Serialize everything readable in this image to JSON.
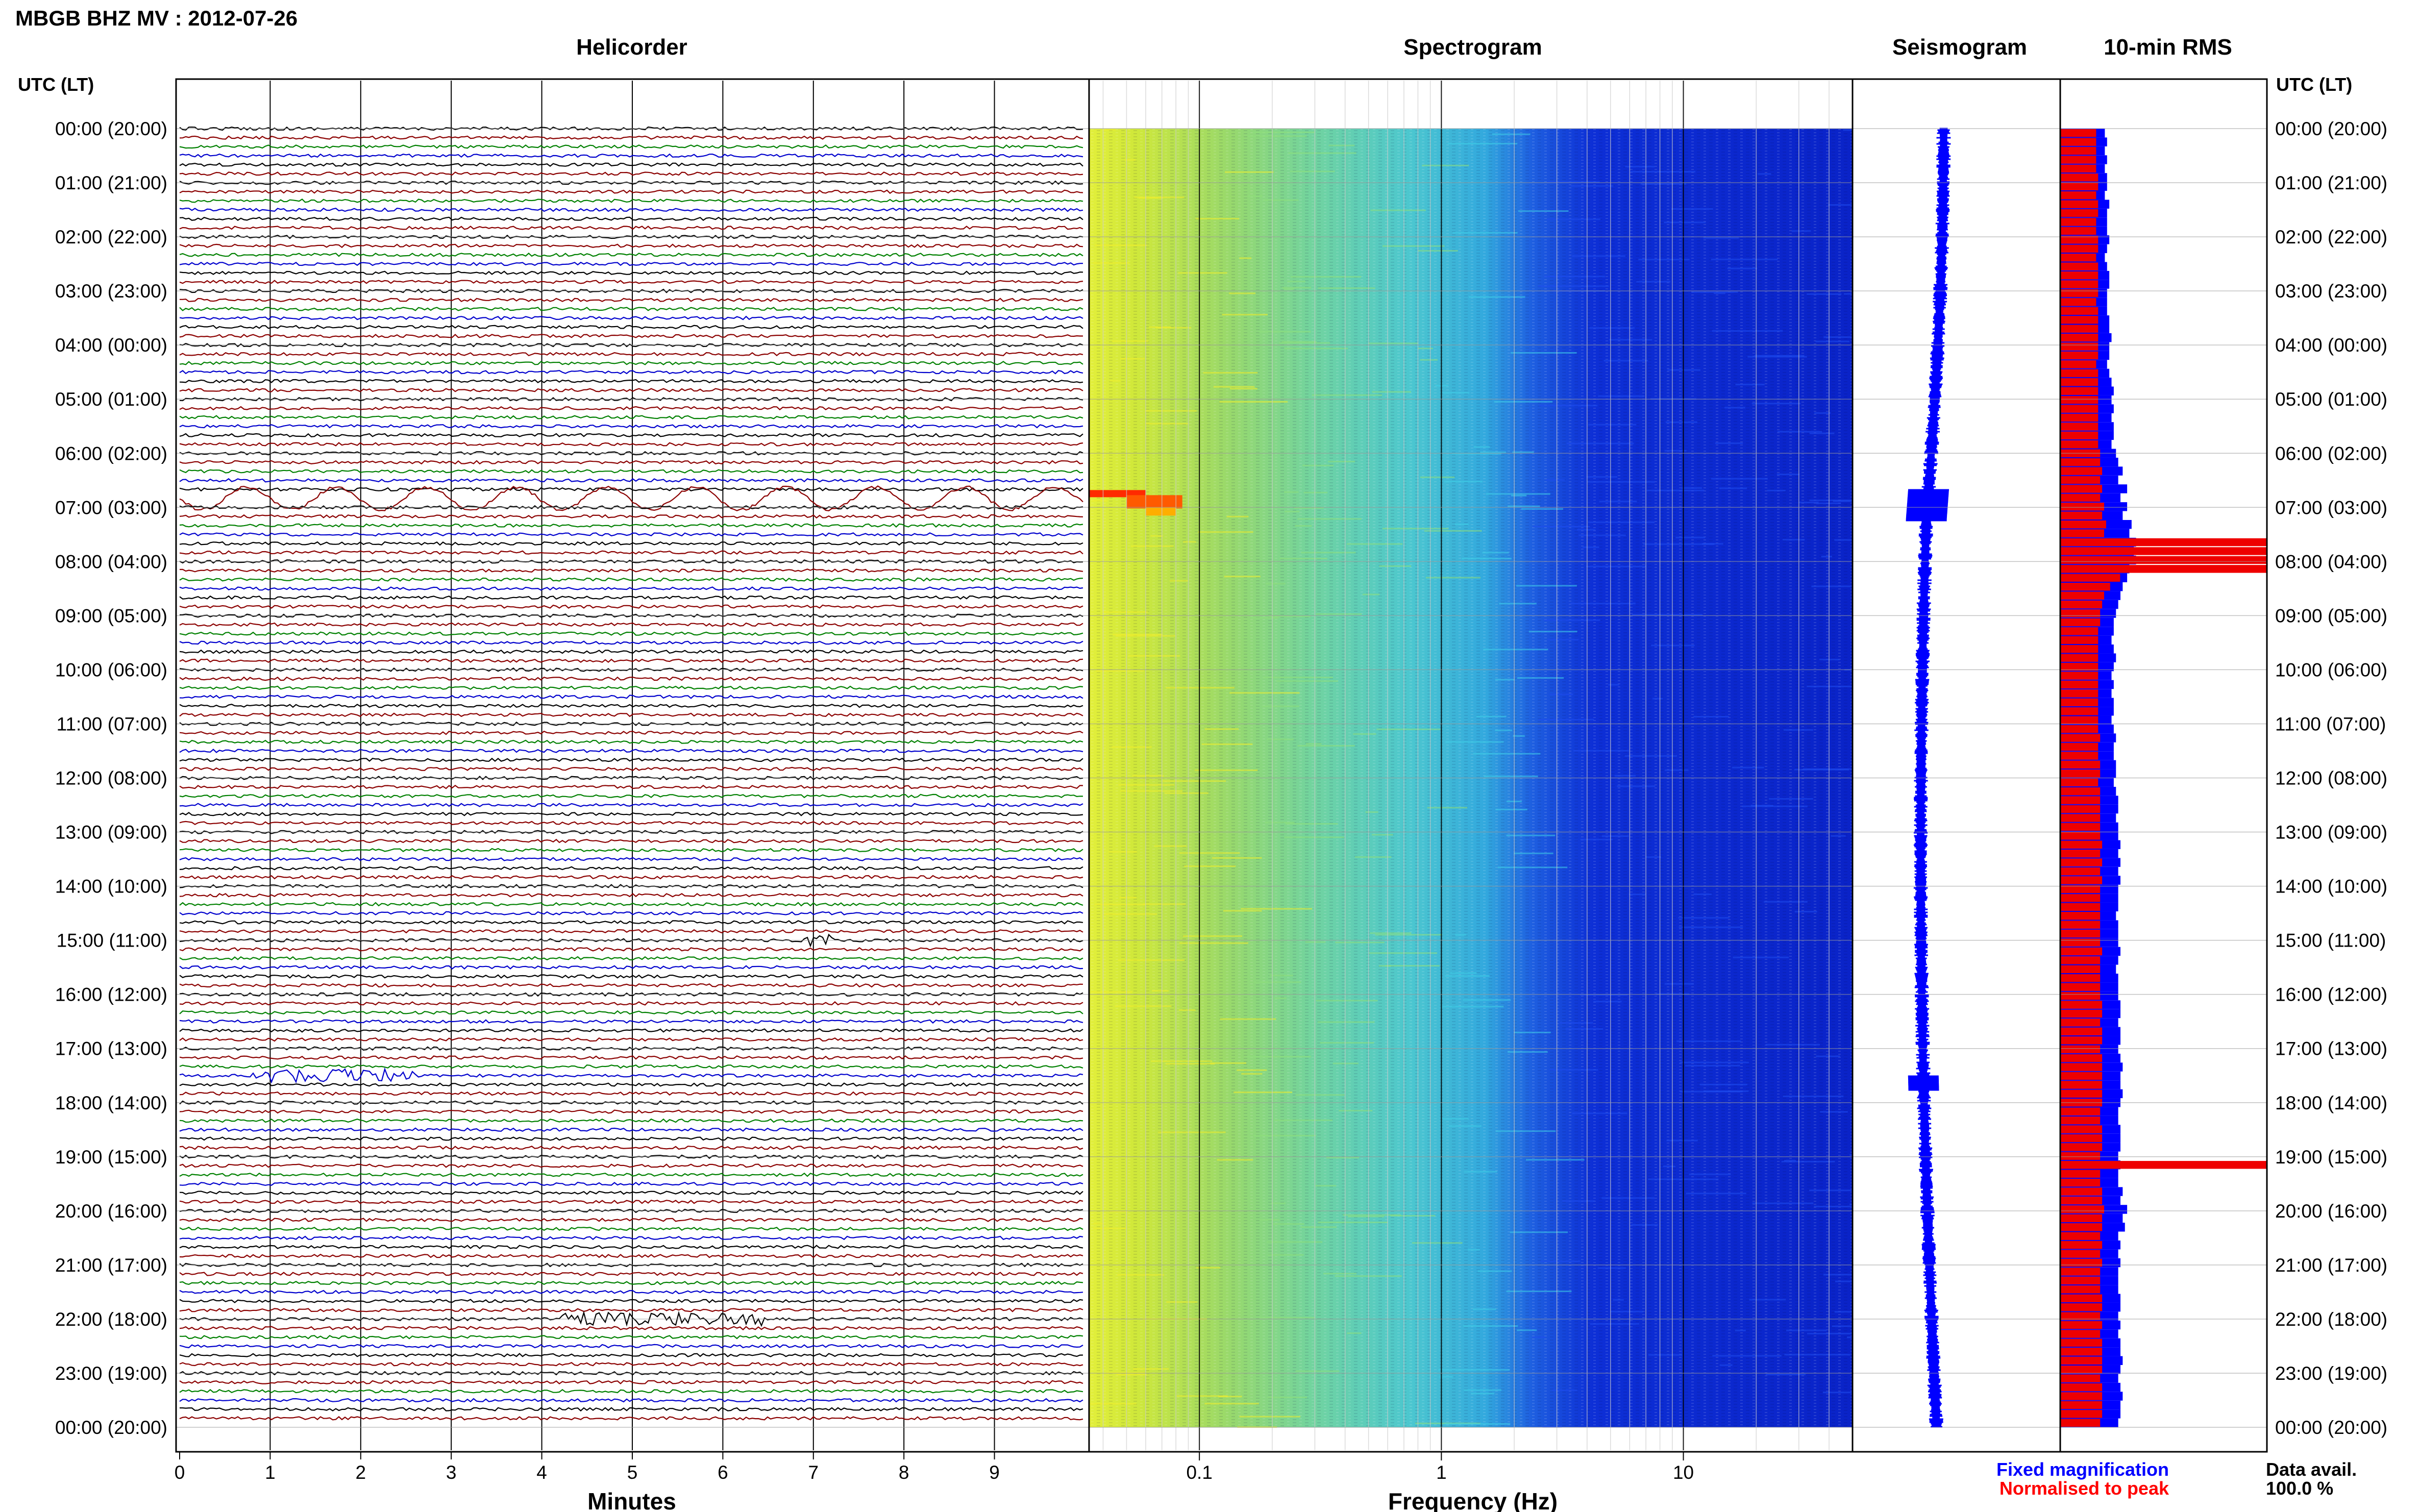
{
  "title": "MBGB BHZ MV : 2012-07-26",
  "panels": {
    "helicorder": "Helicorder",
    "spectrogram": "Spectrogram",
    "seismogram": "Seismogram",
    "rms": "10-min RMS"
  },
  "axis_header_left": "UTC (LT)",
  "axis_header_right": "UTC (LT)",
  "time_labels": [
    "00:00 (20:00)",
    "01:00 (21:00)",
    "02:00 (22:00)",
    "03:00 (23:00)",
    "04:00 (00:00)",
    "05:00 (01:00)",
    "06:00 (02:00)",
    "07:00 (03:00)",
    "08:00 (04:00)",
    "09:00 (05:00)",
    "10:00 (06:00)",
    "11:00 (07:00)",
    "12:00 (08:00)",
    "13:00 (09:00)",
    "14:00 (10:00)",
    "15:00 (11:00)",
    "16:00 (12:00)",
    "17:00 (13:00)",
    "18:00 (14:00)",
    "19:00 (15:00)",
    "20:00 (16:00)",
    "21:00 (17:00)",
    "22:00 (18:00)",
    "23:00 (19:00)",
    "00:00 (20:00)"
  ],
  "helicorder_xlabel": "Minutes",
  "helicorder_ticks": [
    "0",
    "1",
    "2",
    "3",
    "4",
    "5",
    "6",
    "7",
    "8",
    "9"
  ],
  "spectrogram_xlabel": "Frequency (Hz)",
  "spectrogram_ticks": [
    "0.1",
    "1",
    "10"
  ],
  "legend": {
    "fixed": "Fixed magnification",
    "normalised": "Normalised to peak"
  },
  "data_avail_label": "Data avail.",
  "data_avail_value": "100.0 %",
  "colors": {
    "trace_cycle": [
      "#000000",
      "#8b0000",
      "#008000",
      "#0000cd"
    ],
    "rms_fixed": "#0000ff",
    "rms_normalised": "#ee0000",
    "seismogram": "#0000ff",
    "legend_fixed": "#0000ff",
    "legend_normalised": "#ff0000"
  },
  "chart_data": [
    {
      "type": "line",
      "name": "helicorder",
      "xlabel": "Minutes",
      "xlim": [
        0,
        10
      ],
      "rows_per_hour": 6,
      "hours": 24,
      "events": [
        {
          "hour": 6,
          "row": 5,
          "minute_start": 0,
          "minute_end": 10,
          "type": "teleseism"
        },
        {
          "hour": 15,
          "row": 0,
          "minute_start": 6.9,
          "minute_end": 7.3,
          "type": "local"
        },
        {
          "hour": 17,
          "row": 3,
          "minute_start": 0.8,
          "minute_end": 2.6,
          "type": "local"
        },
        {
          "hour": 22,
          "row": 0,
          "minute_start": 4.2,
          "minute_end": 6.5,
          "type": "local"
        }
      ]
    },
    {
      "type": "heatmap",
      "name": "spectrogram",
      "xlabel": "Frequency (Hz)",
      "xscale": "log",
      "xlim": [
        0.035,
        50
      ],
      "xticks": [
        0.1,
        1,
        10
      ]
    },
    {
      "type": "line",
      "name": "seismogram"
    },
    {
      "type": "bar",
      "name": "10-min RMS",
      "fixed": [
        20,
        21,
        20,
        21,
        20,
        21,
        21,
        20,
        22,
        21,
        21,
        21,
        22,
        21,
        20,
        21,
        22,
        22,
        21,
        21,
        21,
        22,
        22,
        23,
        22,
        22,
        21,
        22,
        23,
        24,
        23,
        24,
        23,
        24,
        24,
        23,
        25,
        26,
        28,
        26,
        30,
        27,
        30,
        28,
        32,
        31,
        34,
        33,
        34,
        31,
        30,
        28,
        27,
        26,
        25,
        24,
        24,
        23,
        24,
        25,
        24,
        23,
        24,
        23,
        24,
        24,
        23,
        24,
        25,
        24,
        24,
        25,
        25,
        24,
        25,
        26,
        26,
        25,
        26,
        26,
        27,
        26,
        27,
        26,
        27,
        26,
        26,
        26,
        25,
        26,
        26,
        26,
        27,
        26,
        25,
        26,
        26,
        26,
        27,
        27,
        26,
        27,
        27,
        26,
        27,
        28,
        27,
        27,
        28,
        27,
        26,
        26,
        27,
        27,
        27,
        26,
        27,
        26,
        26,
        28,
        27,
        30,
        28,
        29,
        26,
        27,
        26,
        27,
        26,
        26,
        26,
        27,
        27,
        26,
        27,
        26,
        27,
        27,
        28,
        27,
        26,
        27,
        28,
        27,
        27,
        26
      ],
      "normalised": [
        18,
        18,
        18,
        18,
        18,
        19,
        19,
        18,
        19,
        19,
        18,
        18,
        19,
        19,
        18,
        19,
        19,
        19,
        19,
        18,
        19,
        19,
        19,
        19,
        19,
        19,
        18,
        19,
        19,
        19,
        19,
        19,
        19,
        19,
        19,
        19,
        20,
        20,
        21,
        20,
        21,
        20,
        22,
        21,
        23,
        22,
        50,
        150,
        110,
        60,
        30,
        25,
        22,
        21,
        20,
        20,
        19,
        19,
        19,
        19,
        19,
        19,
        19,
        19,
        19,
        19,
        19,
        19,
        20,
        19,
        19,
        20,
        20,
        19,
        20,
        20,
        20,
        20,
        20,
        20,
        21,
        20,
        21,
        20,
        21,
        20,
        20,
        20,
        20,
        20,
        20,
        20,
        21,
        20,
        20,
        20,
        20,
        20,
        21,
        21,
        20,
        21,
        21,
        20,
        21,
        21,
        21,
        21,
        21,
        21,
        20,
        20,
        21,
        21,
        21,
        20,
        70,
        20,
        20,
        21,
        21,
        22,
        21,
        21,
        20,
        21,
        20,
        21,
        20,
        20,
        20,
        21,
        21,
        20,
        21,
        20,
        21,
        21,
        21,
        21,
        20,
        21,
        21,
        21,
        21,
        20
      ]
    }
  ]
}
